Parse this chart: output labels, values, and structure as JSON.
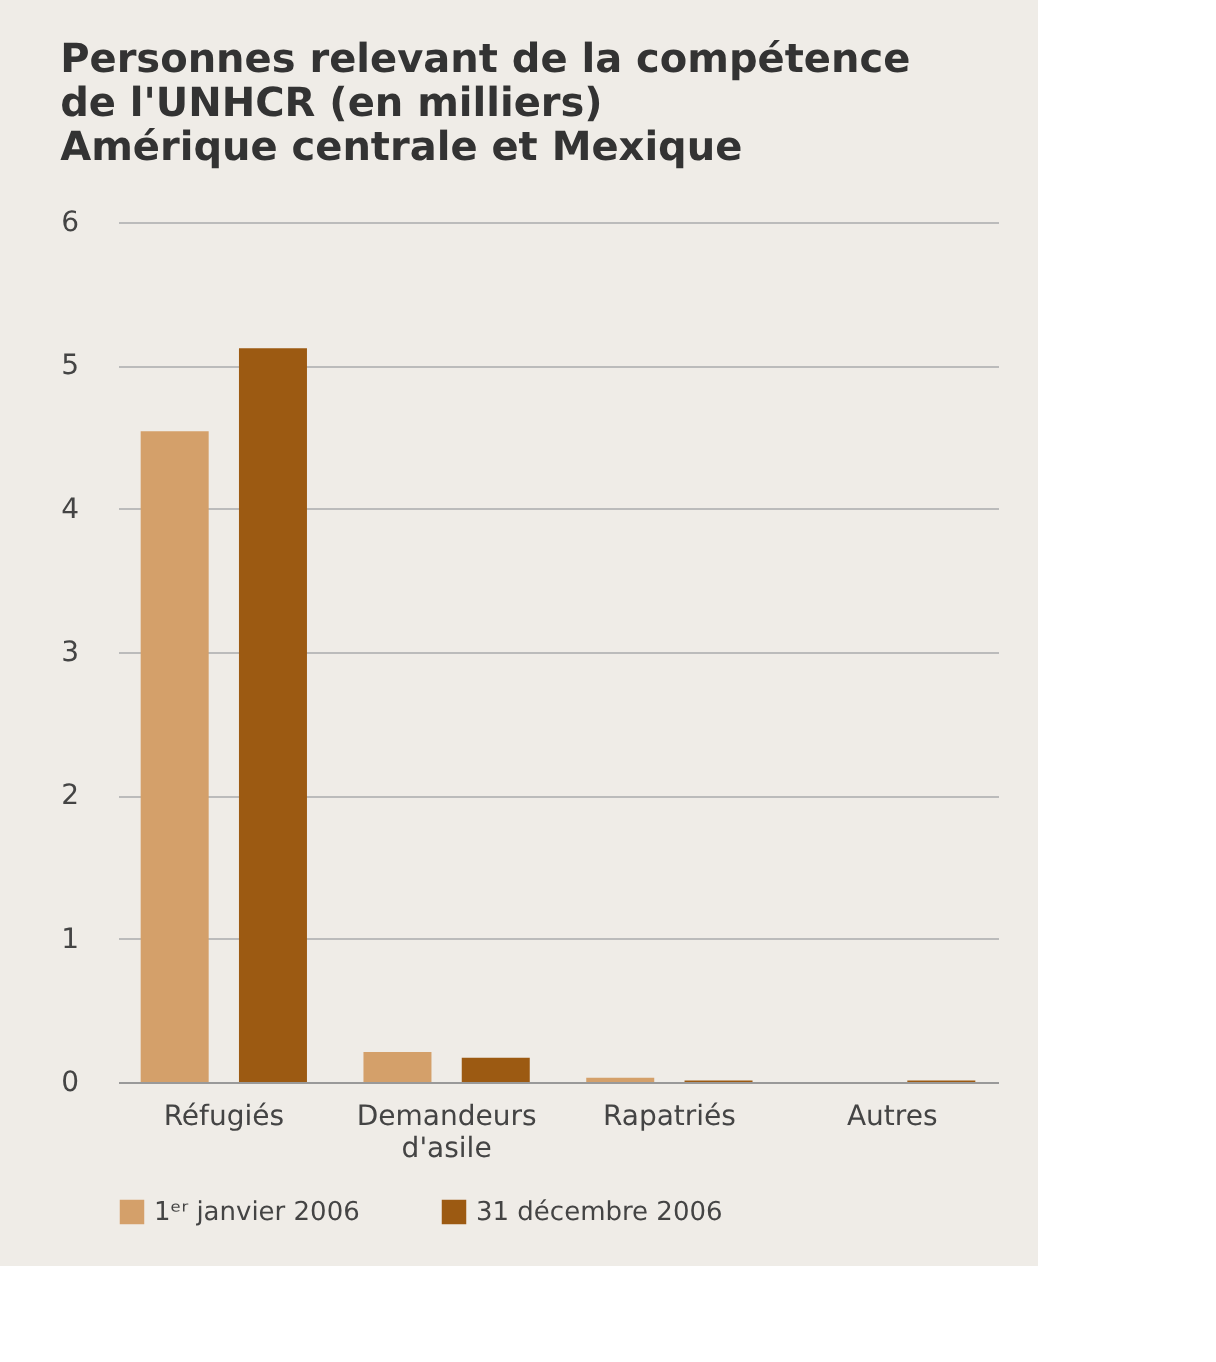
{
  "chart_data": {
    "type": "bar",
    "title": "Personnes relevant de la compétence\nde l'UNHCR (en milliers)\nAmérique centrale et Mexique",
    "categories": [
      "Réfugiés",
      "Demandeurs d'asile",
      "Rapatriés",
      "Autres"
    ],
    "series": [
      {
        "name": "1ᵉʳ janvier 2006",
        "color": "#d4a06a",
        "values": [
          4.54,
          0.21,
          0.03,
          0
        ]
      },
      {
        "name": "31 décembre 2006",
        "color": "#9c5a12",
        "values": [
          5.12,
          0.17,
          0.01,
          0.01
        ]
      }
    ],
    "ylim": [
      0,
      6
    ],
    "yticks": [
      0,
      1,
      2,
      3,
      4,
      5,
      6
    ],
    "grid": "y",
    "legend": "bottom left"
  }
}
